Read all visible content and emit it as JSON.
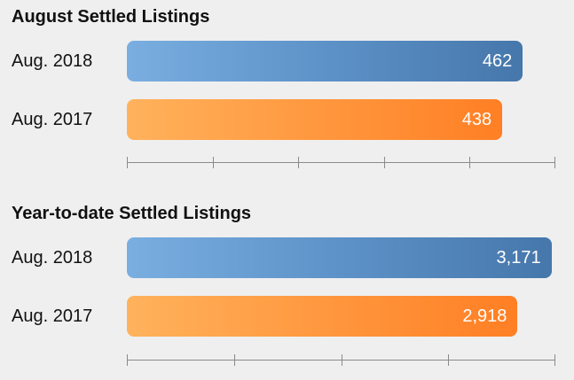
{
  "colors": {
    "series_2018": "#5d92c8",
    "series_2017": "#ff983f",
    "axis": "#8a8a8a",
    "background": "#efefef"
  },
  "chart_data": [
    {
      "type": "bar",
      "orientation": "horizontal",
      "title": "August Settled Listings",
      "categories": [
        "Aug. 2018",
        "Aug. 2017"
      ],
      "values": [
        462,
        438
      ],
      "value_labels": [
        "462",
        "438"
      ],
      "xlim": [
        0,
        500
      ],
      "axis_ticks": [
        0,
        100,
        200,
        300,
        400,
        500
      ],
      "grid": false,
      "legend": "none"
    },
    {
      "type": "bar",
      "orientation": "horizontal",
      "title": "Year-to-date Settled Listings",
      "categories": [
        "Aug. 2018",
        "Aug. 2017"
      ],
      "values": [
        3171,
        2918
      ],
      "value_labels": [
        "3,171",
        "2,918"
      ],
      "xlim": [
        0,
        3200
      ],
      "axis_ticks": [
        0,
        800,
        1600,
        2400,
        3200
      ],
      "grid": false,
      "legend": "none"
    }
  ]
}
